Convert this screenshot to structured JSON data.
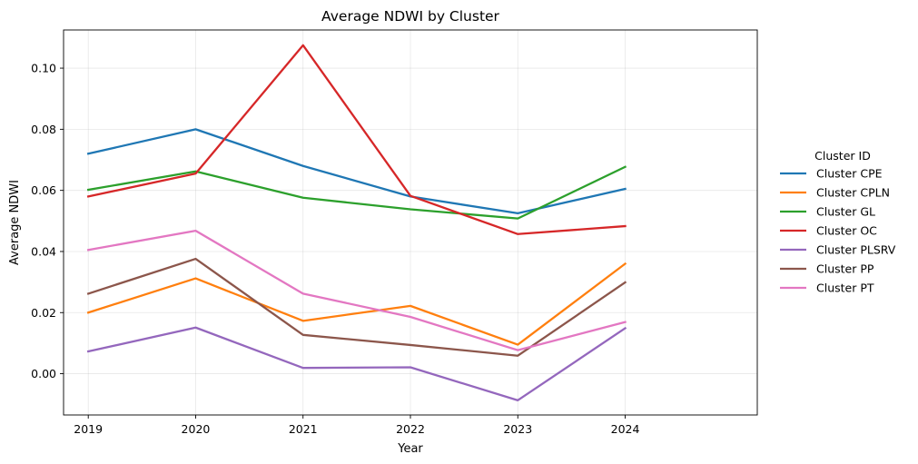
{
  "chart_data": {
    "type": "line",
    "title": "Average NDWI by Cluster",
    "xlabel": "Year",
    "ylabel": "Average NDWI",
    "x": [
      2019,
      2020,
      2021,
      2022,
      2023,
      2024
    ],
    "xlim": [
      2018.77,
      2025.23
    ],
    "ylim": [
      -0.0135,
      0.1125
    ],
    "yticks": [
      0.0,
      0.02,
      0.04,
      0.06,
      0.08,
      0.1
    ],
    "ytick_labels": [
      "0.00",
      "0.02",
      "0.04",
      "0.06",
      "0.08",
      "0.10"
    ],
    "grid": true,
    "legend": {
      "title": "Cluster ID",
      "placement": "right outside"
    },
    "series": [
      {
        "name": "Cluster CPE",
        "color": "#1f77b4",
        "values": [
          0.072,
          0.08,
          0.068,
          0.058,
          0.0525,
          0.0605
        ]
      },
      {
        "name": "Cluster CPLN",
        "color": "#ff7f0e",
        "values": [
          0.02,
          0.0312,
          0.0173,
          0.0222,
          0.0095,
          0.036
        ]
      },
      {
        "name": "Cluster GL",
        "color": "#2ca02c",
        "values": [
          0.0602,
          0.0662,
          0.0576,
          0.0538,
          0.0508,
          0.0677
        ]
      },
      {
        "name": "Cluster OC",
        "color": "#d62728",
        "values": [
          0.058,
          0.0655,
          0.1075,
          0.0582,
          0.0457,
          0.0483
        ]
      },
      {
        "name": "Cluster PLSRV",
        "color": "#9467bd",
        "values": [
          0.0073,
          0.0151,
          0.0019,
          0.0021,
          -0.0087,
          0.0149
        ]
      },
      {
        "name": "Cluster PP",
        "color": "#8c564b",
        "values": [
          0.0262,
          0.0376,
          0.0127,
          0.0094,
          0.0059,
          0.0299
        ]
      },
      {
        "name": "Cluster PT",
        "color": "#e377c2",
        "values": [
          0.0405,
          0.0468,
          0.0262,
          0.0186,
          0.0077,
          0.0169
        ]
      }
    ]
  }
}
